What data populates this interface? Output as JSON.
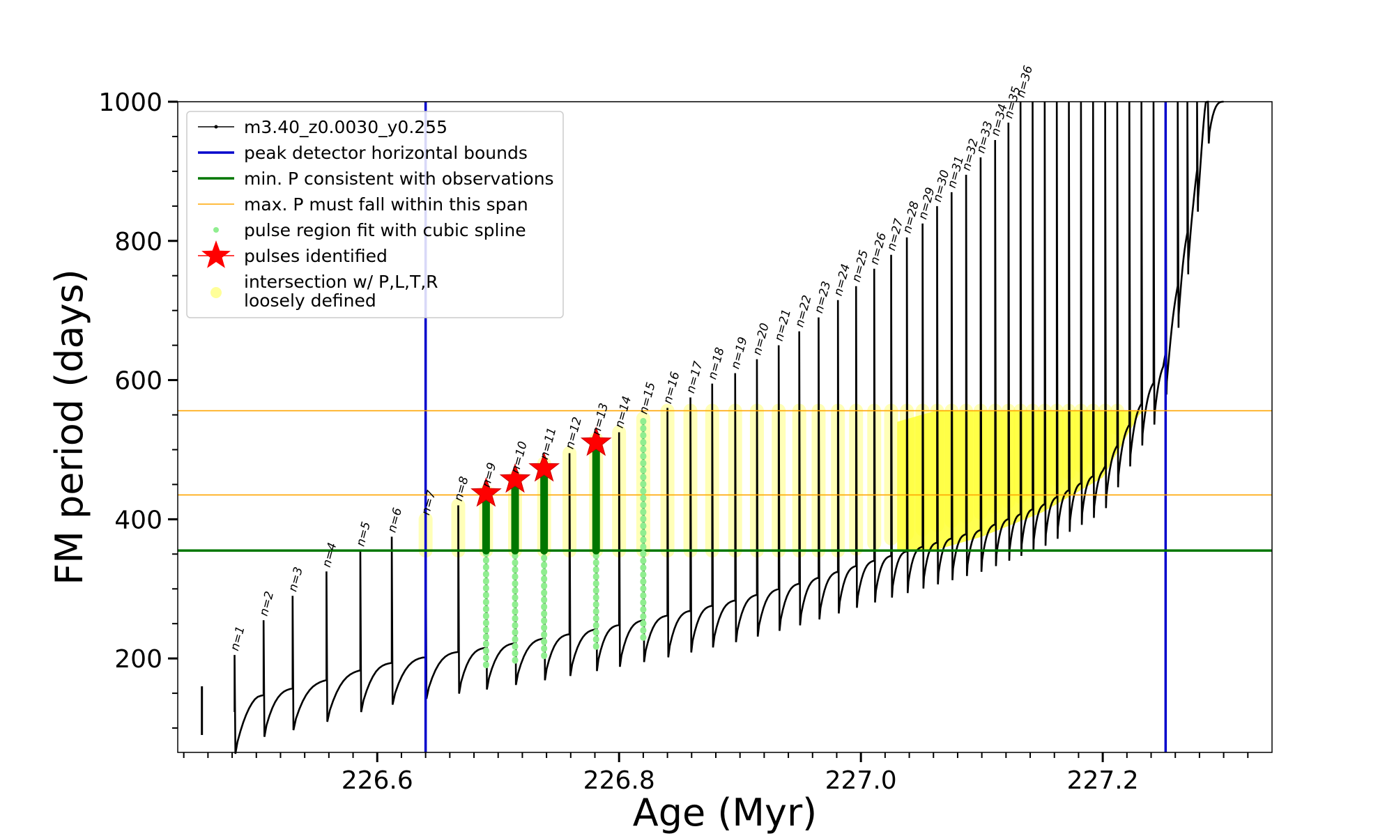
{
  "chart_data": {
    "type": "line",
    "title": "",
    "xlabel": "Age (Myr)",
    "ylabel": "FM period (days)",
    "xlim": [
      226.435,
      227.34
    ],
    "ylim": [
      65,
      1000
    ],
    "x_ticks": [
      "226.6",
      "226.8",
      "227.0",
      "227.2"
    ],
    "x_tick_values": [
      226.6,
      226.8,
      227.0,
      227.2
    ],
    "y_ticks": [
      "200",
      "400",
      "600",
      "800",
      "1000"
    ],
    "y_tick_values": [
      200,
      400,
      600,
      800,
      1000
    ],
    "grid": false,
    "legend_placement": "upper-left",
    "colors": {
      "track": "#000000",
      "bounds": "#0000cc",
      "min_p": "#007700",
      "max_p": "#ffa500",
      "spline": "#90ee90",
      "pulse_fit": "#007700",
      "star": "#ff0000",
      "intersection": "#ffff33"
    },
    "legend": [
      {
        "label": "m3.40_z0.0030_y0.255",
        "marker": "line-dot",
        "color": "#000000"
      },
      {
        "label": "peak detector horizontal bounds",
        "marker": "line",
        "color": "#0000cc"
      },
      {
        "label": "min. P consistent with observations",
        "marker": "line",
        "color": "#007700"
      },
      {
        "label": "max. P must fall within this span",
        "marker": "thin-line",
        "color": "#ffa500"
      },
      {
        "label": "pulse region fit with cubic spline",
        "marker": "dot",
        "color": "#90ee90"
      },
      {
        "label": "pulses identified",
        "marker": "star",
        "color": "#ff0000"
      },
      {
        "label": "intersection w/ P,L,T,R",
        "label2": "loosely defined",
        "marker": "circle",
        "color": "#ffff99"
      }
    ],
    "vertical_bounds": [
      226.64,
      227.252
    ],
    "min_period": 355,
    "max_period_span": [
      435,
      556
    ],
    "track_base": [
      [
        226.455,
        90
      ],
      [
        226.5,
        145
      ],
      [
        226.55,
        165
      ],
      [
        226.6,
        190
      ],
      [
        226.65,
        205
      ],
      [
        226.7,
        218
      ],
      [
        226.75,
        232
      ],
      [
        226.8,
        248
      ],
      [
        226.85,
        265
      ],
      [
        226.9,
        285
      ],
      [
        226.95,
        308
      ],
      [
        227.0,
        335
      ],
      [
        227.05,
        360
      ],
      [
        227.1,
        385
      ],
      [
        227.15,
        420
      ],
      [
        227.2,
        470
      ],
      [
        227.25,
        620
      ],
      [
        227.275,
        860
      ],
      [
        227.285,
        1000
      ]
    ],
    "pulses": [
      {
        "label": "n=1",
        "age": 226.482,
        "peak": 205
      },
      {
        "label": "n=2",
        "age": 226.506,
        "peak": 255
      },
      {
        "label": "n=3",
        "age": 226.53,
        "peak": 290
      },
      {
        "label": "n=4",
        "age": 226.558,
        "peak": 325
      },
      {
        "label": "n=5",
        "age": 226.586,
        "peak": 355
      },
      {
        "label": "n=6",
        "age": 226.612,
        "peak": 375
      },
      {
        "label": "n=7",
        "age": 226.64,
        "peak": 400
      },
      {
        "label": "n=8",
        "age": 226.667,
        "peak": 420
      },
      {
        "label": "n=9",
        "age": 226.69,
        "peak": 440
      },
      {
        "label": "n=10",
        "age": 226.714,
        "peak": 460
      },
      {
        "label": "n=11",
        "age": 226.738,
        "peak": 480
      },
      {
        "label": "n=12",
        "age": 226.759,
        "peak": 495
      },
      {
        "label": "n=13",
        "age": 226.781,
        "peak": 515
      },
      {
        "label": "n=14",
        "age": 226.8,
        "peak": 525
      },
      {
        "label": "n=15",
        "age": 226.82,
        "peak": 545
      },
      {
        "label": "n=16",
        "age": 226.84,
        "peak": 560
      },
      {
        "label": "n=17",
        "age": 226.859,
        "peak": 575
      },
      {
        "label": "n=18",
        "age": 226.877,
        "peak": 595
      },
      {
        "label": "n=19",
        "age": 226.896,
        "peak": 610
      },
      {
        "label": "n=20",
        "age": 226.914,
        "peak": 630
      },
      {
        "label": "n=21",
        "age": 226.932,
        "peak": 650
      },
      {
        "label": "n=22",
        "age": 226.949,
        "peak": 670
      },
      {
        "label": "n=23",
        "age": 226.965,
        "peak": 690
      },
      {
        "label": "n=24",
        "age": 226.981,
        "peak": 715
      },
      {
        "label": "n=25",
        "age": 226.996,
        "peak": 735
      },
      {
        "label": "n=26",
        "age": 227.011,
        "peak": 760
      },
      {
        "label": "n=27",
        "age": 227.025,
        "peak": 780
      },
      {
        "label": "n=28",
        "age": 227.038,
        "peak": 805
      },
      {
        "label": "n=29",
        "age": 227.051,
        "peak": 825
      },
      {
        "label": "n=30",
        "age": 227.063,
        "peak": 850
      },
      {
        "label": "n=31",
        "age": 227.075,
        "peak": 870
      },
      {
        "label": "n=32",
        "age": 227.087,
        "peak": 895
      },
      {
        "label": "n=33",
        "age": 227.099,
        "peak": 920
      },
      {
        "label": "n=34",
        "age": 227.111,
        "peak": 945
      },
      {
        "label": "n=35",
        "age": 227.122,
        "peak": 970
      },
      {
        "label": "n=36",
        "age": 227.132,
        "peak": 1000
      },
      {
        "label": "",
        "age": 227.142,
        "peak": 1000
      },
      {
        "label": "",
        "age": 227.152,
        "peak": 1000
      },
      {
        "label": "",
        "age": 227.162,
        "peak": 1000
      },
      {
        "label": "",
        "age": 227.172,
        "peak": 1000
      },
      {
        "label": "",
        "age": 227.182,
        "peak": 1000
      },
      {
        "label": "",
        "age": 227.192,
        "peak": 1000
      },
      {
        "label": "",
        "age": 227.202,
        "peak": 1000
      },
      {
        "label": "",
        "age": 227.212,
        "peak": 1000
      },
      {
        "label": "",
        "age": 227.222,
        "peak": 1000
      },
      {
        "label": "",
        "age": 227.232,
        "peak": 1000
      },
      {
        "label": "",
        "age": 227.242,
        "peak": 1000
      },
      {
        "label": "",
        "age": 227.252,
        "peak": 1000
      },
      {
        "label": "",
        "age": 227.262,
        "peak": 1000
      },
      {
        "label": "",
        "age": 227.27,
        "peak": 1000
      },
      {
        "label": "",
        "age": 227.278,
        "peak": 1000
      },
      {
        "label": "",
        "age": 227.287,
        "peak": 1000
      }
    ],
    "spline_pulses": [
      226.69,
      226.714,
      226.738,
      226.781,
      226.82
    ],
    "fit_pulses": [
      226.69,
      226.714,
      226.738,
      226.781
    ],
    "stars": [
      {
        "age": 226.69,
        "period": 437
      },
      {
        "age": 226.714,
        "period": 457
      },
      {
        "age": 226.738,
        "period": 473
      },
      {
        "age": 226.781,
        "period": 510
      }
    ]
  }
}
